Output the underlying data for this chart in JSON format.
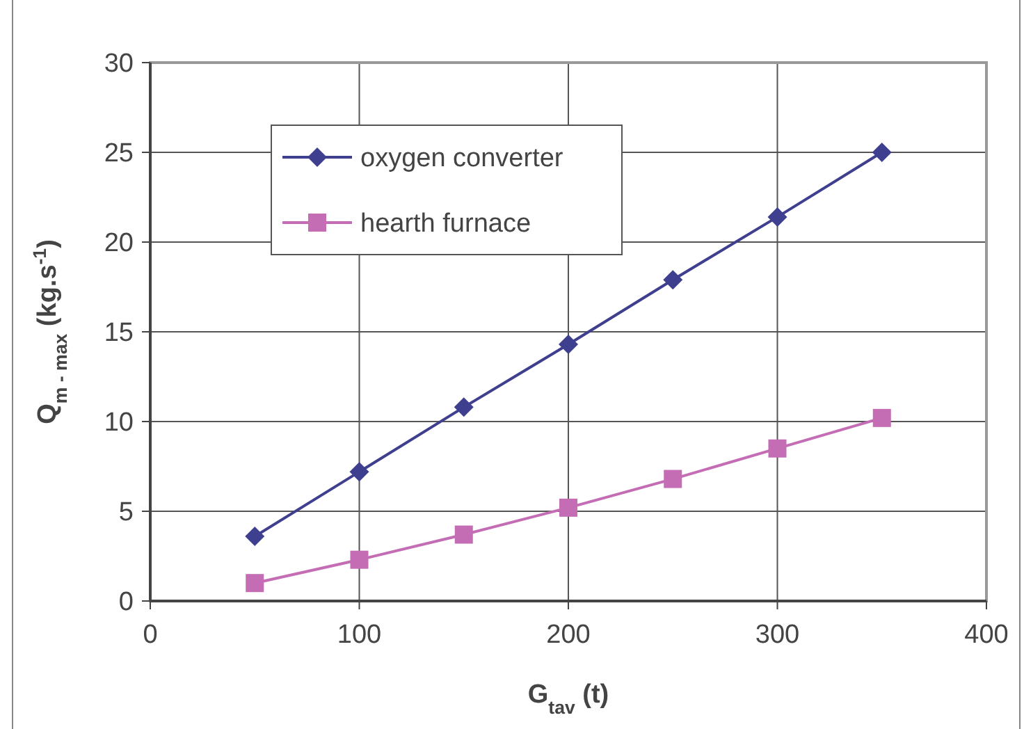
{
  "chart_data": {
    "type": "line",
    "xlabel": "G$_{tav}$ (t)",
    "ylabel": "Q$_{m - max}$ (kg.s$^{-1}$)",
    "x": [
      50,
      100,
      150,
      200,
      250,
      300,
      350
    ],
    "series": [
      {
        "name": "oxygen converter",
        "color": "#3f3f8f",
        "marker": "diamond",
        "values": [
          3.6,
          7.2,
          10.8,
          14.3,
          17.9,
          21.4,
          25.0
        ]
      },
      {
        "name": "hearth furnace",
        "color": "#c46cb4",
        "marker": "square",
        "values": [
          1.0,
          2.3,
          3.7,
          5.2,
          6.8,
          8.5,
          10.2
        ]
      }
    ],
    "xlim": [
      0,
      400
    ],
    "xticks": [
      0,
      100,
      200,
      300,
      400
    ],
    "ylim": [
      0,
      30
    ],
    "yticks": [
      0,
      5,
      10,
      15,
      20,
      25,
      30
    ],
    "grid": true,
    "legend": "top left",
    "line_style": "solid"
  }
}
